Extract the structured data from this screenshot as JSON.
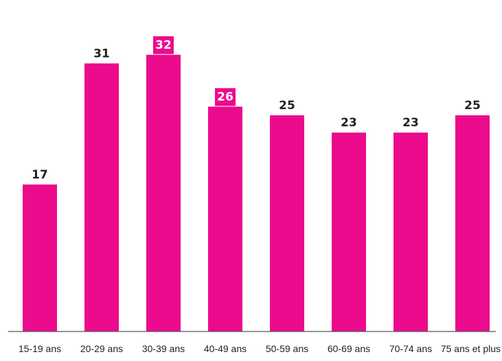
{
  "chart_data": {
    "type": "bar",
    "title": "",
    "xlabel": "",
    "ylabel": "",
    "ylim": [
      0,
      35
    ],
    "grid": false,
    "legend": "none",
    "categories": [
      "15-19 ans",
      "20-29 ans",
      "30-39 ans",
      "40-49 ans",
      "50-59 ans",
      "60-69 ans",
      "70-74 ans",
      "75 ans et plus"
    ],
    "values": [
      17,
      31,
      32,
      26,
      25,
      23,
      23,
      25
    ],
    "value_labels": [
      "17",
      "31",
      "32",
      "26",
      "25",
      "23",
      "23",
      "25"
    ],
    "highlighted_labels": [
      2,
      3
    ],
    "colors": {
      "bar": "#ec0b8c",
      "label_text": "#222222",
      "highlight_label_bg": "#ec0b8c",
      "highlight_label_text": "#ffffff",
      "axis": "#555555"
    }
  }
}
